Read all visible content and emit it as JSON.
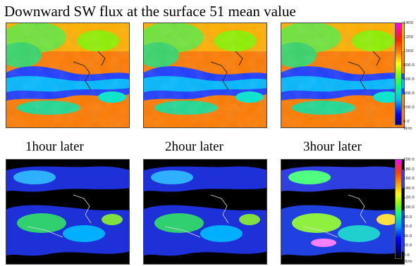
{
  "title": "Downward SW flux at the surface 51 mean value",
  "lower_row_titles": [
    "1hour later",
    "2hour later",
    "3hour later"
  ],
  "top_colorbar": {
    "ticks": [
      "1400",
      "1200",
      "1000",
      "800.0",
      "600.0",
      "400.0",
      "200.0",
      "0.0"
    ],
    "unit": "W/m"
  },
  "bottom_colorbar": {
    "ticks": [
      "200.0",
      "180.0",
      "160.0",
      "140.0",
      "120.0",
      "100.0",
      "80.0",
      "60.0",
      "40.0",
      "20.0",
      "0.0"
    ],
    "unit": "W/m"
  },
  "colors": {
    "top_ramp": [
      "#000080",
      "#0000ff",
      "#00c0ff",
      "#00ff80",
      "#80ff00",
      "#ffff00",
      "#ff8000",
      "#ff2000",
      "#ff00ff"
    ],
    "bottom_ramp": [
      "#000000",
      "#000080",
      "#0000ff",
      "#00a0ff",
      "#00ff80",
      "#80ff00",
      "#ffff00",
      "#ffa000",
      "#ff4000",
      "#ff00ff"
    ]
  }
}
